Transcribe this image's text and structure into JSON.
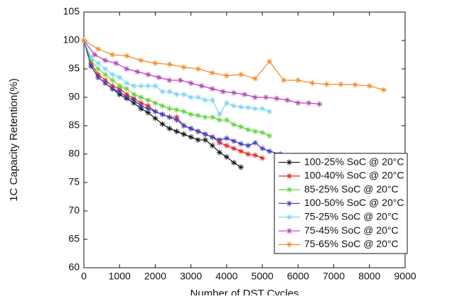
{
  "chart_data": {
    "type": "line",
    "xlabel": "Number of DST Cycles",
    "ylabel": "1C Capacity Retention(%)",
    "xlim": [
      0,
      9000
    ],
    "xticks": [
      0,
      1000,
      2000,
      3000,
      4000,
      5000,
      6000,
      7000,
      8000,
      9000
    ],
    "ylim": [
      60,
      105
    ],
    "yticks": [
      60,
      65,
      70,
      75,
      80,
      85,
      90,
      95,
      100,
      105
    ],
    "grid": false,
    "legend": "lower right",
    "series": [
      {
        "name": "100-25% SoC @ 20°C",
        "color": "#111111",
        "x": [
          0,
          200,
          400,
          600,
          800,
          1000,
          1200,
          1400,
          1600,
          1800,
          2000,
          2200,
          2400,
          2600,
          2800,
          3000,
          3200,
          3400,
          3600,
          3800,
          4000,
          4200,
          4400
        ],
        "values": [
          100,
          95.5,
          93.5,
          92.5,
          91.5,
          90.5,
          89.8,
          89,
          88,
          87.3,
          86.3,
          85.3,
          84.5,
          84,
          83.5,
          83,
          82.5,
          82.5,
          81.5,
          80.3,
          79.5,
          78.5,
          77.7
        ]
      },
      {
        "name": "100-40% SoC @ 20°C",
        "color": "#e8201a",
        "x": [
          0,
          200,
          400,
          600,
          800,
          1000,
          1200,
          1400,
          1600,
          1800,
          2000,
          2200,
          2400,
          2600,
          2800,
          3000,
          3200,
          3400,
          3600,
          3800,
          4000,
          4200,
          4400,
          4600,
          4800,
          5000
        ],
        "values": [
          100,
          96,
          94,
          93,
          92,
          91.5,
          90.5,
          89.8,
          89,
          88.5,
          87.5,
          87,
          86.5,
          86.5,
          85,
          84.5,
          84,
          83.5,
          83,
          82,
          81.5,
          81,
          80.5,
          80,
          79.8,
          79.3
        ]
      },
      {
        "name": "85-25% SoC @ 20°C",
        "color": "#5fd13b",
        "x": [
          0,
          200,
          400,
          600,
          800,
          1000,
          1200,
          1400,
          1600,
          1800,
          2000,
          2200,
          2400,
          2600,
          2800,
          3000,
          3200,
          3400,
          3600,
          3800,
          4000,
          4200,
          4400,
          4600,
          4800,
          5000,
          5200
        ],
        "values": [
          100,
          96.5,
          95,
          94,
          93,
          92,
          91.5,
          90.5,
          90,
          89.5,
          89,
          88.5,
          88,
          87.8,
          87.5,
          87,
          86.8,
          86.5,
          86.5,
          86,
          86,
          85.2,
          84.8,
          84.3,
          84,
          83.8,
          83.2
        ]
      },
      {
        "name": "100-50% SoC @ 20°C",
        "color": "#3b3bb5",
        "x": [
          0,
          200,
          400,
          600,
          800,
          1000,
          1200,
          1400,
          1600,
          1800,
          2000,
          2200,
          2400,
          2600,
          2800,
          3000,
          3200,
          3400,
          3600,
          3800,
          4000,
          4200,
          4400,
          4600,
          4800,
          5000,
          5200,
          5500
        ],
        "values": [
          100,
          95.5,
          93.5,
          92.5,
          91.5,
          91,
          90,
          89.5,
          88.5,
          88,
          87.5,
          87,
          86.5,
          86,
          85,
          84.5,
          84,
          83.5,
          83,
          82.5,
          82.8,
          82.3,
          81.8,
          81.5,
          82,
          81,
          80.5,
          80
        ]
      },
      {
        "name": "75-25% SoC @ 20°C",
        "color": "#77d4ef",
        "x": [
          0,
          200,
          400,
          600,
          800,
          1000,
          1200,
          1400,
          1600,
          1800,
          2000,
          2200,
          2400,
          2600,
          2800,
          3000,
          3200,
          3400,
          3600,
          3800,
          4000,
          4200,
          4400,
          4600,
          4800,
          5000,
          5200
        ],
        "values": [
          100,
          97,
          96,
          95,
          94,
          93.5,
          92.5,
          92,
          92,
          92,
          92,
          91,
          91,
          90.5,
          90.5,
          90,
          90,
          89.5,
          89.5,
          87,
          89,
          88.5,
          88.3,
          88.2,
          88,
          88,
          87.5
        ]
      },
      {
        "name": "75-45% SoC @ 20°C",
        "color": "#b43cb4",
        "x": [
          0,
          300,
          600,
          900,
          1200,
          1500,
          1800,
          2100,
          2400,
          2700,
          3000,
          3300,
          3600,
          3900,
          4200,
          4500,
          4800,
          5100,
          5400,
          5700,
          6000,
          6300,
          6600
        ],
        "values": [
          100,
          97.5,
          96.5,
          96,
          95,
          94.5,
          94,
          93.5,
          93,
          93,
          92.5,
          92,
          91.5,
          91,
          90.8,
          90.5,
          90,
          90,
          89.8,
          89.5,
          89,
          89,
          88.8
        ]
      },
      {
        "name": "75-65% SoC @ 20°C",
        "color": "#f08a1e",
        "x": [
          0,
          400,
          800,
          1200,
          1600,
          2000,
          2400,
          2800,
          3200,
          3600,
          4000,
          4400,
          4800,
          5200,
          5600,
          6000,
          6400,
          6800,
          7200,
          7600,
          8000,
          8400
        ],
        "values": [
          100,
          98.5,
          97.5,
          97.3,
          96.5,
          96,
          95.8,
          95.3,
          95,
          94.3,
          93.8,
          94,
          93.3,
          96.3,
          93,
          93,
          92.5,
          92.3,
          92.3,
          92.2,
          92,
          91.3
        ]
      }
    ]
  }
}
